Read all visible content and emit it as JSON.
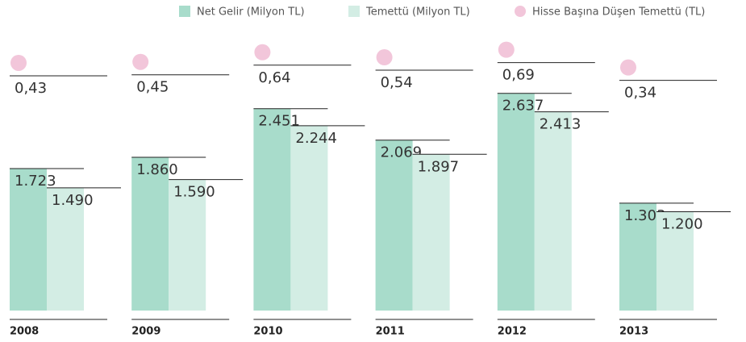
{
  "chart_data": {
    "type": "bar",
    "categories": [
      "2008",
      "2009",
      "2010",
      "2011",
      "2012",
      "2013"
    ],
    "ylim": [
      0,
      3770
    ],
    "y2lim": [
      0,
      1.67
    ],
    "series": [
      {
        "name": "Net Gelir (Milyon TL)",
        "color": "#a8dccb",
        "values": [
          1723,
          1860,
          2451,
          2069,
          2637,
          1303
        ],
        "value_labels": [
          "1.723",
          "1.860",
          "2.451",
          "2.069",
          "2.637",
          "1.303"
        ]
      },
      {
        "name": "Temettü (Milyon TL)",
        "color": "#d3ede4",
        "values": [
          1490,
          1590,
          2244,
          1897,
          2413,
          1200
        ],
        "value_labels": [
          "1.490",
          "1.590",
          "2.244",
          "1.897",
          "2.413",
          "1.200"
        ]
      },
      {
        "name": "Hisse Başına Düşen Temettü (TL)",
        "color": "#f2c6da",
        "axis": "y2",
        "type": "scatter",
        "values": [
          0.43,
          0.45,
          0.64,
          0.54,
          0.69,
          0.34
        ],
        "value_labels": [
          "0,43",
          "0,45",
          "0,64",
          "0,54",
          "0,69",
          "0,34"
        ]
      }
    ]
  }
}
